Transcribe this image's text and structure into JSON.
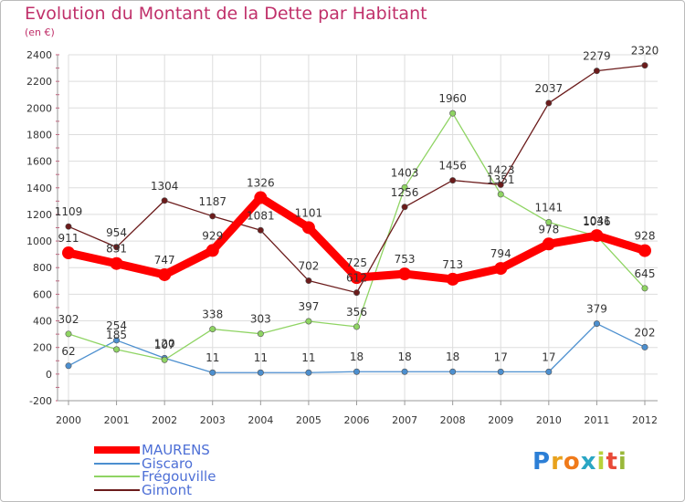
{
  "title": "Evolution du Montant de la Dette par Habitant",
  "subtitle": "(en €)",
  "logo": {
    "text": "Proxiti",
    "letter_colors": [
      "#2c7fd6",
      "#e8a21d",
      "#f07a1a",
      "#2aa6c4",
      "#b8d23a",
      "#e84a38",
      "#9ab83a"
    ]
  },
  "colors": {
    "MAURENS": "#ff0000",
    "Giscaro": "#4c8fcf",
    "Frégouville": "#8fd463",
    "Gimont": "#6b1b1b",
    "title": "#c0306a",
    "axis": "#999999",
    "grid": "#dddddd",
    "legend_text": "#4d6fd6"
  },
  "chart_data": {
    "type": "line",
    "title": "Evolution du Montant de la Dette par Habitant",
    "subtitle": "(en €)",
    "xlabel": "",
    "ylabel": "",
    "x": [
      2000,
      2001,
      2002,
      2003,
      2004,
      2005,
      2006,
      2007,
      2008,
      2009,
      2010,
      2011,
      2012
    ],
    "ylim": [
      -200,
      2400
    ],
    "yticks": [
      -200,
      0,
      200,
      400,
      600,
      800,
      1000,
      1200,
      1400,
      1600,
      1800,
      2000,
      2200,
      2400
    ],
    "grid": true,
    "legend_position": "bottom-left",
    "series": [
      {
        "name": "MAURENS",
        "values": [
          911,
          831,
          747,
          929,
          1326,
          1101,
          725,
          753,
          713,
          794,
          978,
          1041,
          928
        ]
      },
      {
        "name": "Giscaro",
        "values": [
          62,
          254,
          120,
          11,
          11,
          11,
          18,
          18,
          18,
          17,
          17,
          379,
          202
        ]
      },
      {
        "name": "Frégouville",
        "values": [
          302,
          185,
          107,
          338,
          303,
          397,
          356,
          1403,
          1960,
          1351,
          1141,
          1036,
          645
        ]
      },
      {
        "name": "Gimont",
        "values": [
          1109,
          954,
          1304,
          1187,
          1081,
          702,
          612,
          1256,
          1456,
          1423,
          2037,
          2279,
          2320
        ]
      }
    ]
  }
}
